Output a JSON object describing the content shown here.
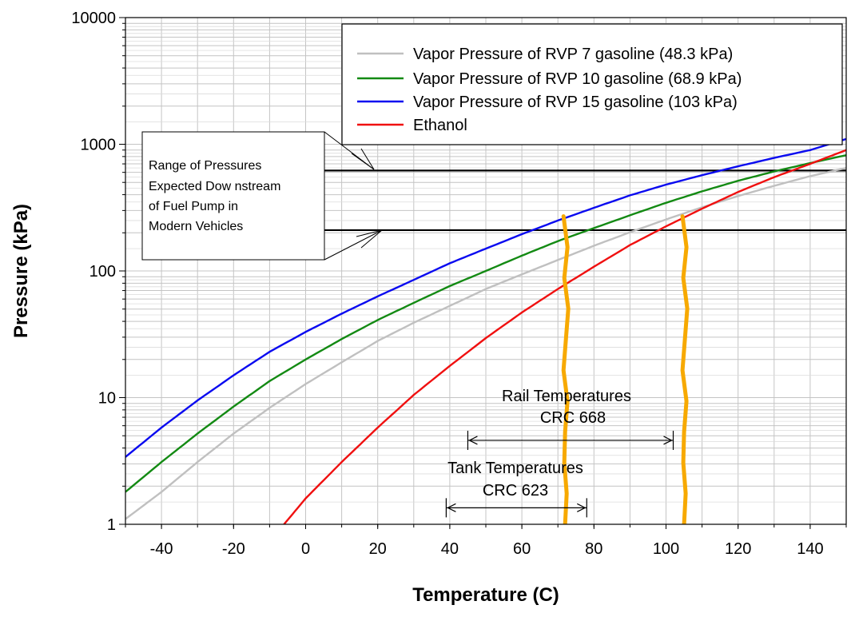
{
  "chart_data": {
    "type": "line",
    "xlabel": "Temperature (C)",
    "ylabel": "Pressure (kPa)",
    "xlim": [
      -50,
      150
    ],
    "ylim": [
      1,
      10000
    ],
    "yscale": "log",
    "grid": true,
    "legend_position": "top-right",
    "x_ticks": [
      "-40",
      "-20",
      "0",
      "20",
      "40",
      "60",
      "80",
      "100",
      "120",
      "140"
    ],
    "y_ticks": [
      "1",
      "10",
      "100",
      "1000",
      "10000"
    ],
    "series": [
      {
        "name": "Vapor Pressure of RVP 7 gasoline (48.3 kPa)",
        "color": "#c0c0c0",
        "x": [
          -50,
          -40,
          -30,
          -20,
          -10,
          0,
          10,
          20,
          30,
          40,
          50,
          60,
          70,
          80,
          90,
          100,
          110,
          120,
          130,
          140,
          150
        ],
        "y": [
          1.1,
          1.8,
          3.1,
          5.2,
          8.3,
          12.8,
          19,
          28,
          39,
          53,
          72,
          94,
          122,
          158,
          202,
          255,
          318,
          390,
          470,
          560,
          650
        ]
      },
      {
        "name": "Vapor Pressure of RVP 10 gasoline (68.9 kPa)",
        "color": "#138a13",
        "x": [
          -50,
          -40,
          -30,
          -20,
          -10,
          0,
          10,
          20,
          30,
          40,
          50,
          60,
          70,
          80,
          90,
          100,
          110,
          120,
          130,
          140,
          150
        ],
        "y": [
          1.8,
          3.1,
          5.2,
          8.5,
          13.5,
          20,
          29,
          41,
          56,
          76,
          100,
          132,
          172,
          218,
          275,
          345,
          425,
          515,
          610,
          710,
          820
        ]
      },
      {
        "name": "Vapor Pressure of RVP 15 gasoline (103 kPa)",
        "color": "#0a0af0",
        "x": [
          -50,
          -40,
          -30,
          -20,
          -10,
          0,
          10,
          20,
          30,
          40,
          50,
          60,
          70,
          80,
          90,
          100,
          110,
          120,
          130,
          140,
          150
        ],
        "y": [
          3.4,
          5.8,
          9.5,
          15,
          23,
          33,
          46,
          63,
          85,
          115,
          150,
          195,
          250,
          315,
          395,
          480,
          570,
          670,
          780,
          900,
          1100
        ]
      },
      {
        "name": "Ethanol",
        "color": "#f01010",
        "x": [
          -6,
          0,
          10,
          20,
          30,
          40,
          50,
          60,
          70,
          80,
          90,
          100,
          110,
          120,
          130,
          140,
          150
        ],
        "y": [
          1.0,
          1.6,
          3.1,
          5.8,
          10.5,
          17.8,
          29.5,
          47,
          72,
          108,
          160,
          225,
          310,
          420,
          550,
          700,
          900
        ]
      }
    ]
  },
  "annotations": {
    "pressure_range_box": {
      "lines": [
        "Range of Pressures",
        "Expected Dow nstream",
        "of Fuel Pump in",
        "Modern Vehicles"
      ],
      "upper_line_kpa": 620,
      "lower_line_kpa": 210
    },
    "rail": {
      "line1": "Rail Temperatures",
      "line2": "CRC 668",
      "x_range": [
        45,
        102
      ],
      "y_level": 4.6
    },
    "tank": {
      "line1": "Tank Temperatures",
      "line2": "CRC 623",
      "x_range": [
        39,
        78
      ],
      "y_level": 1.35
    },
    "markers": {
      "color": "#f7a900",
      "x_positions": [
        72,
        105
      ],
      "top_kpa": [
        270,
        270
      ]
    }
  }
}
